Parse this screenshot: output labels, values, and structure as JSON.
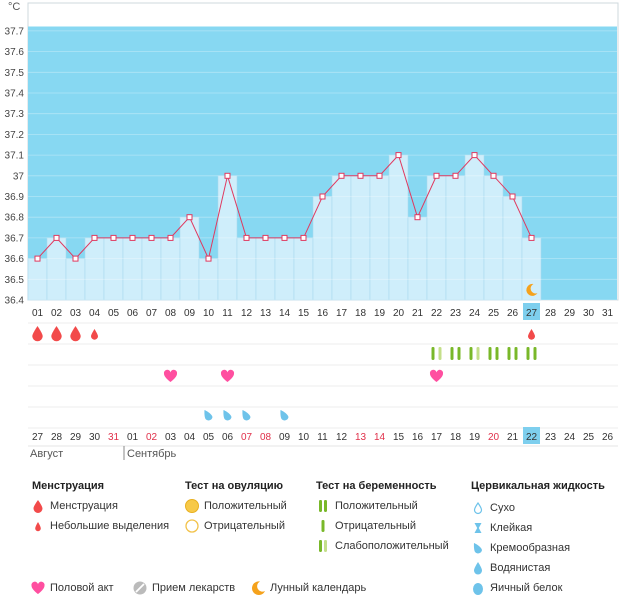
{
  "chart_data": {
    "type": "bbt-chart",
    "unit": "°C",
    "ylim": [
      36.4,
      37.7
    ],
    "yticks": [
      "36.4",
      "36.5",
      "36.6",
      "36.7",
      "36.8",
      "36.9",
      "37",
      "37.1",
      "37.2",
      "37.3",
      "37.4",
      "37.5",
      "37.6",
      "37.7"
    ],
    "cycle_days": [
      "01",
      "02",
      "03",
      "04",
      "05",
      "06",
      "07",
      "08",
      "09",
      "10",
      "11",
      "12",
      "13",
      "14",
      "15",
      "16",
      "17",
      "18",
      "19",
      "20",
      "21",
      "22",
      "23",
      "24",
      "25",
      "26",
      "27",
      "28",
      "29",
      "30",
      "31"
    ],
    "temperatures": [
      36.6,
      36.7,
      36.6,
      36.7,
      36.7,
      36.7,
      36.7,
      36.7,
      36.8,
      36.6,
      37.0,
      36.7,
      36.7,
      36.7,
      36.7,
      36.9,
      37.0,
      37.0,
      37.0,
      37.1,
      36.8,
      37.0,
      37.0,
      37.1,
      37.0,
      36.9,
      36.7
    ],
    "current_day": "27",
    "dates": [
      "27",
      "28",
      "29",
      "30",
      "31",
      "01",
      "02",
      "03",
      "04",
      "05",
      "06",
      "07",
      "08",
      "09",
      "10",
      "11",
      "12",
      "13",
      "14",
      "15",
      "16",
      "17",
      "18",
      "19",
      "20",
      "21",
      "22",
      "23",
      "24",
      "25",
      "26"
    ],
    "weekend_dates": [
      4,
      6,
      11,
      12,
      17,
      18,
      24
    ],
    "month_labels": [
      "Август",
      "Сентябрь"
    ],
    "menstruation": [
      "heavy",
      "heavy",
      "heavy",
      "light"
    ],
    "light_spotting_days": [
      27
    ],
    "pregnancy_tests": [
      "weak",
      "positive",
      "weak",
      "positive",
      "positive",
      "positive"
    ],
    "intercourse_days": [
      8,
      11,
      22
    ],
    "cervical_fluid_days": [
      10,
      11,
      12,
      14
    ],
    "moon_day": 27
  },
  "colors": {
    "sky": "#87d8f2",
    "bar": "#cfeefb",
    "line": "#e0395f",
    "menstruation": "#f24a4a",
    "heart": "#ff4fa0",
    "test_green": "#79b829",
    "test_weak": "#c4df8a",
    "fluid": "#6ec3ea",
    "highlight": "#7ecfee",
    "moon": "#f5a21c",
    "weekend": "#e0304a"
  },
  "legend": {
    "menstruation": {
      "title": "Менструация",
      "items": [
        "Менструация",
        "Небольшие выделения"
      ]
    },
    "ovulation": {
      "title": "Тест на овуляцию",
      "items": [
        "Положительный",
        "Отрицательный"
      ]
    },
    "pregnancy": {
      "title": "Тест на беременность",
      "items": [
        "Положительный",
        "Отрицательный",
        "Слабоположительный"
      ]
    },
    "fluid": {
      "title": "Цервикальная жидкость",
      "items": [
        "Сухо",
        "Клейкая",
        "Кремообразная",
        "Водянистая",
        "Яичный белок"
      ]
    },
    "bottom": [
      "Половой акт",
      "Прием лекарств",
      "Лунный календарь"
    ]
  }
}
